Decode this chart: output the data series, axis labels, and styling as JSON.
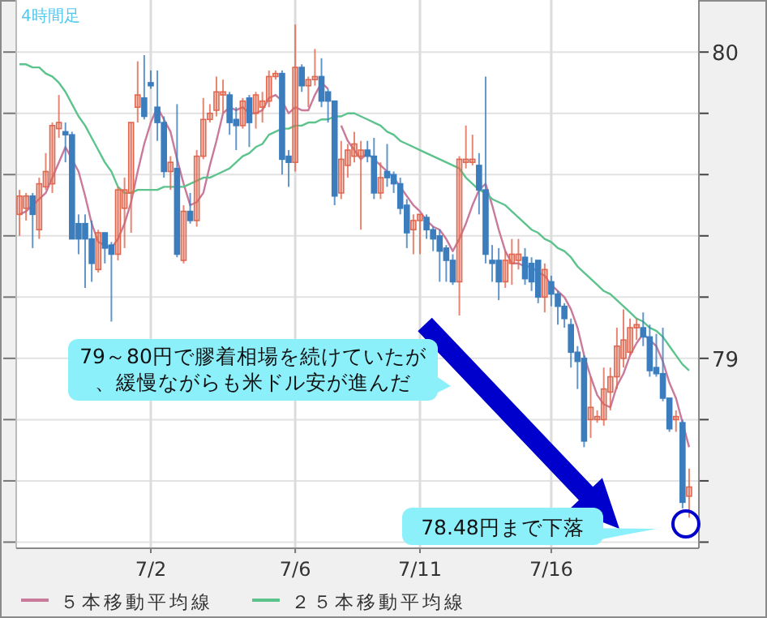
{
  "chart_data": {
    "type": "candlestick",
    "title": "4時間足",
    "categories": [
      null,
      null,
      null,
      null,
      null,
      null,
      null,
      null,
      null,
      null,
      null,
      null,
      null,
      null,
      null,
      null,
      null,
      null,
      null,
      null,
      "7/2",
      null,
      null,
      null,
      null,
      null,
      null,
      null,
      null,
      null,
      null,
      null,
      null,
      null,
      null,
      null,
      null,
      null,
      null,
      null,
      null,
      null,
      "7/6",
      null,
      null,
      null,
      null,
      null,
      null,
      null,
      null,
      null,
      null,
      null,
      null,
      null,
      null,
      null,
      null,
      null,
      null,
      "7/11",
      null,
      null,
      null,
      null,
      null,
      null,
      null,
      null,
      null,
      null,
      null,
      null,
      null,
      null,
      null,
      null,
      null,
      null,
      null,
      "7/16",
      null,
      null,
      null,
      null,
      null,
      null,
      null,
      null,
      null,
      null,
      null,
      null,
      null,
      null,
      null,
      null,
      null,
      null,
      null,
      null,
      null
    ],
    "ohlc": [
      [
        79.47,
        79.55,
        79.4,
        79.53
      ],
      [
        79.49,
        79.54,
        79.45,
        79.53
      ],
      [
        79.53,
        79.54,
        79.36,
        79.47
      ],
      [
        79.42,
        79.59,
        79.39,
        79.57
      ],
      [
        79.56,
        79.67,
        79.55,
        79.61
      ],
      [
        79.57,
        79.77,
        79.54,
        79.76
      ],
      [
        79.75,
        79.86,
        79.72,
        79.77
      ],
      [
        79.74,
        79.77,
        79.64,
        79.73
      ],
      [
        79.73,
        79.74,
        79.39,
        79.39
      ],
      [
        79.44,
        79.47,
        79.34,
        79.39
      ],
      [
        79.44,
        79.47,
        79.23,
        79.39
      ],
      [
        79.39,
        79.45,
        79.25,
        79.31
      ],
      [
        79.29,
        79.42,
        79.28,
        79.41
      ],
      [
        79.41,
        79.41,
        79.31,
        79.36
      ],
      [
        79.37,
        79.38,
        79.12,
        79.34
      ],
      [
        79.34,
        79.56,
        79.32,
        79.55
      ],
      [
        79.49,
        79.59,
        79.36,
        79.55
      ],
      [
        79.54,
        79.77,
        79.41,
        79.77
      ],
      [
        79.82,
        79.97,
        79.77,
        79.86
      ],
      [
        79.85,
        79.99,
        79.78,
        79.79
      ],
      [
        79.9,
        79.94,
        79.88,
        79.89
      ],
      [
        79.82,
        79.94,
        79.71,
        79.77
      ],
      [
        79.77,
        79.79,
        79.59,
        79.61
      ],
      [
        79.61,
        79.66,
        79.55,
        79.64
      ],
      [
        79.62,
        79.83,
        79.33,
        79.34
      ],
      [
        79.32,
        79.5,
        79.31,
        79.48
      ],
      [
        79.48,
        79.54,
        79.44,
        79.45
      ],
      [
        79.45,
        79.68,
        79.43,
        79.66
      ],
      [
        79.66,
        79.85,
        79.65,
        79.78
      ],
      [
        79.78,
        79.83,
        79.77,
        79.8
      ],
      [
        79.81,
        79.92,
        79.79,
        79.87
      ],
      [
        79.86,
        79.91,
        79.8,
        79.87
      ],
      [
        79.86,
        79.87,
        79.73,
        79.77
      ],
      [
        79.78,
        79.82,
        79.68,
        79.76
      ],
      [
        79.76,
        79.85,
        79.75,
        79.84
      ],
      [
        79.85,
        79.86,
        79.69,
        79.77
      ],
      [
        79.8,
        79.87,
        79.75,
        79.86
      ],
      [
        79.82,
        79.87,
        79.77,
        79.84
      ],
      [
        79.84,
        79.94,
        79.82,
        79.92
      ],
      [
        79.92,
        79.94,
        79.91,
        79.93
      ],
      [
        79.93,
        79.94,
        79.6,
        79.65
      ],
      [
        79.66,
        79.68,
        79.56,
        79.64
      ],
      [
        79.64,
        80.09,
        79.61,
        79.95
      ],
      [
        79.95,
        79.96,
        79.87,
        79.89
      ],
      [
        79.89,
        79.92,
        79.82,
        79.91
      ],
      [
        79.91,
        80.01,
        79.89,
        79.92
      ],
      [
        79.92,
        79.98,
        79.82,
        79.84
      ],
      [
        79.87,
        79.88,
        79.77,
        79.84
      ],
      [
        79.84,
        79.84,
        79.5,
        79.53
      ],
      [
        79.54,
        79.71,
        79.52,
        79.65
      ],
      [
        79.63,
        79.7,
        79.59,
        79.68
      ],
      [
        79.66,
        79.74,
        79.64,
        79.7
      ],
      [
        79.66,
        79.71,
        79.42,
        79.68
      ],
      [
        79.68,
        79.71,
        79.64,
        79.66
      ],
      [
        79.66,
        79.72,
        79.52,
        79.54
      ],
      [
        79.54,
        79.64,
        79.52,
        79.59
      ],
      [
        79.61,
        79.7,
        79.56,
        79.59
      ],
      [
        79.6,
        79.61,
        79.54,
        79.57
      ],
      [
        79.57,
        79.59,
        79.47,
        79.49
      ],
      [
        79.5,
        79.52,
        79.36,
        79.41
      ],
      [
        79.42,
        79.47,
        79.34,
        79.45
      ],
      [
        79.45,
        79.47,
        79.34,
        79.47
      ],
      [
        79.46,
        79.47,
        79.39,
        79.42
      ],
      [
        79.42,
        79.43,
        79.35,
        79.39
      ],
      [
        79.4,
        79.42,
        79.25,
        79.35
      ],
      [
        79.36,
        79.37,
        79.25,
        79.32
      ],
      [
        79.32,
        79.34,
        79.24,
        79.25
      ],
      [
        79.25,
        79.66,
        79.14,
        79.65
      ],
      [
        79.64,
        79.76,
        79.62,
        79.65
      ],
      [
        79.64,
        79.73,
        79.63,
        79.65
      ],
      [
        79.63,
        79.67,
        79.47,
        79.55
      ],
      [
        79.55,
        79.92,
        79.31,
        79.34
      ],
      [
        79.32,
        79.37,
        79.25,
        79.31
      ],
      [
        79.32,
        79.36,
        79.19,
        79.25
      ],
      [
        79.25,
        79.35,
        79.23,
        79.32
      ],
      [
        79.31,
        79.39,
        79.24,
        79.34
      ],
      [
        79.32,
        79.39,
        79.29,
        79.34
      ],
      [
        79.33,
        79.36,
        79.24,
        79.26
      ],
      [
        79.31,
        79.33,
        79.22,
        79.25
      ],
      [
        79.32,
        79.32,
        79.18,
        79.2
      ],
      [
        79.2,
        79.31,
        79.15,
        79.29
      ],
      [
        79.25,
        79.27,
        79.17,
        79.21
      ],
      [
        79.21,
        79.22,
        79.11,
        79.17
      ],
      [
        79.17,
        79.18,
        79.1,
        79.13
      ],
      [
        79.11,
        79.13,
        78.97,
        79.02
      ],
      [
        79.02,
        79.04,
        78.9,
        78.99
      ],
      [
        79.0,
        79.01,
        78.71,
        78.73
      ],
      [
        78.8,
        78.94,
        78.74,
        78.84
      ],
      [
        78.8,
        78.83,
        78.79,
        78.81
      ],
      [
        78.8,
        78.97,
        78.78,
        78.9
      ],
      [
        78.89,
        78.97,
        78.83,
        78.94
      ],
      [
        78.94,
        79.1,
        78.9,
        79.04
      ],
      [
        79.0,
        79.16,
        78.97,
        79.06
      ],
      [
        79.02,
        79.13,
        79.01,
        79.1
      ],
      [
        79.1,
        79.13,
        79.06,
        79.11
      ],
      [
        79.1,
        79.15,
        79.04,
        79.07
      ],
      [
        79.07,
        79.11,
        78.94,
        78.96
      ],
      [
        78.97,
        79.08,
        78.94,
        78.95
      ],
      [
        78.95,
        79.1,
        78.86,
        78.87
      ],
      [
        78.87,
        78.87,
        78.76,
        78.77
      ],
      [
        78.8,
        78.83,
        78.76,
        78.81
      ],
      [
        78.79,
        78.8,
        78.51,
        78.53
      ],
      [
        78.55,
        78.64,
        78.48,
        78.58
      ]
    ],
    "colors": [
      "#e0674f",
      "#e0674f",
      "#3b7dbd",
      "#e0674f",
      "#e0674f",
      "#e0674f",
      "#e0674f",
      "#3b7dbd",
      "#3b7dbd",
      "#3b7dbd",
      "#3b7dbd",
      "#3b7dbd",
      "#e0674f",
      "#3b7dbd",
      "#3b7dbd",
      "#e0674f",
      "#e0674f",
      "#e0674f",
      "#e0674f",
      "#3b7dbd",
      "#3b7dbd",
      "#3b7dbd",
      "#3b7dbd",
      "#e0674f",
      "#3b7dbd",
      "#e0674f",
      "#3b7dbd",
      "#e0674f",
      "#e0674f",
      "#e0674f",
      "#e0674f",
      "#e0674f",
      "#3b7dbd",
      "#3b7dbd",
      "#e0674f",
      "#3b7dbd",
      "#e0674f",
      "#e0674f",
      "#e0674f",
      "#e0674f",
      "#3b7dbd",
      "#3b7dbd",
      "#e0674f",
      "#3b7dbd",
      "#e0674f",
      "#e0674f",
      "#3b7dbd",
      "#3b7dbd",
      "#3b7dbd",
      "#e0674f",
      "#e0674f",
      "#e0674f",
      "#e0674f",
      "#3b7dbd",
      "#3b7dbd",
      "#e0674f",
      "#3b7dbd",
      "#3b7dbd",
      "#3b7dbd",
      "#3b7dbd",
      "#e0674f",
      "#e0674f",
      "#3b7dbd",
      "#3b7dbd",
      "#3b7dbd",
      "#3b7dbd",
      "#3b7dbd",
      "#e0674f",
      "#e0674f",
      "#e0674f",
      "#3b7dbd",
      "#3b7dbd",
      "#3b7dbd",
      "#3b7dbd",
      "#e0674f",
      "#e0674f",
      "#e0674f",
      "#3b7dbd",
      "#3b7dbd",
      "#3b7dbd",
      "#e0674f",
      "#3b7dbd",
      "#3b7dbd",
      "#3b7dbd",
      "#3b7dbd",
      "#3b7dbd",
      "#3b7dbd",
      "#e0674f",
      "#e0674f",
      "#e0674f",
      "#e0674f",
      "#e0674f",
      "#e0674f",
      "#e0674f",
      "#e0674f",
      "#3b7dbd",
      "#3b7dbd",
      "#3b7dbd",
      "#3b7dbd",
      "#3b7dbd",
      "#e0674f",
      "#3b7dbd",
      "#e0674f"
    ],
    "series": [
      {
        "type": "line",
        "name": "５本移動平均線",
        "color": "#c9799a",
        "values": [
          79.47,
          79.48,
          79.5,
          79.52,
          79.54,
          79.59,
          79.64,
          79.69,
          79.65,
          79.61,
          79.53,
          79.44,
          79.38,
          79.37,
          79.36,
          79.39,
          79.44,
          79.51,
          79.61,
          79.7,
          79.77,
          79.82,
          79.78,
          79.74,
          79.65,
          79.57,
          79.5,
          79.51,
          79.54,
          79.63,
          79.71,
          79.8,
          79.82,
          79.81,
          79.82,
          79.8,
          79.8,
          79.81,
          79.85,
          79.86,
          79.84,
          79.8,
          79.82,
          79.81,
          79.81,
          79.86,
          79.9,
          79.88,
          null,
          79.76,
          79.71,
          79.68,
          79.65,
          79.67,
          79.65,
          79.63,
          79.61,
          79.59,
          79.56,
          79.53,
          79.5,
          79.48,
          79.45,
          79.43,
          79.42,
          79.39,
          79.35,
          79.39,
          79.44,
          79.5,
          79.55,
          79.57,
          79.5,
          79.42,
          79.35,
          79.31,
          79.31,
          79.3,
          79.3,
          79.28,
          79.27,
          79.24,
          79.22,
          79.2,
          79.16,
          79.1,
          79.01,
          78.94,
          78.88,
          78.85,
          78.84,
          78.91,
          78.95,
          79.01,
          79.05,
          79.08,
          79.06,
          79.04,
          78.99,
          78.92,
          78.87,
          78.79,
          78.71
        ]
      },
      {
        "type": "line",
        "name": "２５本移動平均線",
        "color": "#5cc38c",
        "values": [
          79.96,
          79.96,
          79.95,
          79.95,
          79.93,
          79.92,
          79.9,
          79.87,
          79.83,
          79.79,
          79.76,
          79.72,
          79.68,
          79.64,
          79.61,
          79.56,
          79.54,
          79.54,
          79.55,
          79.55,
          79.55,
          79.55,
          79.56,
          79.56,
          79.56,
          79.56,
          79.57,
          79.58,
          79.59,
          79.59,
          79.6,
          79.61,
          79.62,
          79.64,
          79.66,
          79.67,
          79.69,
          79.7,
          79.73,
          79.74,
          79.75,
          79.75,
          79.76,
          79.76,
          79.77,
          79.77,
          79.78,
          79.78,
          79.79,
          79.79,
          79.8,
          79.8,
          79.79,
          79.78,
          79.77,
          79.76,
          79.74,
          79.73,
          79.71,
          79.7,
          79.69,
          79.68,
          79.67,
          79.66,
          79.65,
          79.64,
          79.63,
          79.62,
          79.59,
          79.57,
          79.55,
          79.54,
          79.52,
          79.51,
          79.5,
          79.48,
          79.46,
          79.44,
          79.42,
          79.41,
          79.39,
          79.38,
          79.36,
          79.35,
          79.33,
          79.3,
          79.28,
          79.26,
          79.24,
          79.22,
          79.21,
          79.19,
          79.17,
          79.15,
          79.13,
          79.12,
          79.1,
          79.09,
          79.07,
          79.04,
          79.01,
          78.98,
          78.96
        ]
      }
    ],
    "ylim": [
      78.38,
      80.17
    ],
    "yticks": [
      {
        "value": 78.4,
        "label": null
      },
      {
        "value": 78.6,
        "label": null
      },
      {
        "value": 78.8,
        "label": null
      },
      79,
      {
        "value": 79.2,
        "label": null
      },
      {
        "value": 79.4,
        "label": null
      },
      {
        "value": 79.6,
        "label": null
      },
      {
        "value": 79.8,
        "label": null
      },
      80
    ],
    "grid": true,
    "legend": "bottom",
    "annotations": [
      "79～80円で膠着相場を続けていたが、緩慢ながらも米ドル安が進んだ",
      "78.48円まで下落"
    ]
  }
}
